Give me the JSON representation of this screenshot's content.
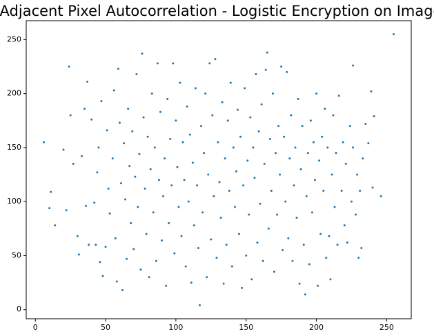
{
  "chart_data": {
    "type": "scatter",
    "title": "Adjacent Pixel Autocorrelation - Logistic Encryption on Image",
    "color": "#1f77b4",
    "x": [
      255,
      6,
      117,
      192,
      10,
      14,
      11,
      24,
      76,
      165,
      226,
      241,
      246,
      232,
      239,
      20,
      22,
      25,
      27,
      30,
      31,
      33,
      35,
      36,
      37,
      38,
      40,
      42,
      43,
      44,
      45,
      46,
      47,
      48,
      50,
      51,
      52,
      53,
      55,
      56,
      57,
      58,
      59,
      60,
      61,
      62,
      63,
      64,
      65,
      66,
      67,
      68,
      69,
      70,
      71,
      72,
      73,
      74,
      75,
      77,
      78,
      79,
      80,
      81,
      82,
      83,
      84,
      85,
      86,
      87,
      88,
      89,
      90,
      91,
      92,
      93,
      94,
      95,
      96,
      97,
      98,
      99,
      100,
      101,
      102,
      103,
      104,
      105,
      106,
      107,
      108,
      109,
      110,
      111,
      112,
      113,
      114,
      115,
      116,
      118,
      119,
      120,
      121,
      122,
      123,
      124,
      125,
      126,
      127,
      128,
      129,
      130,
      131,
      132,
      133,
      134,
      135,
      136,
      137,
      138,
      139,
      140,
      141,
      142,
      143,
      144,
      145,
      146,
      147,
      148,
      149,
      150,
      151,
      152,
      153,
      154,
      155,
      156,
      157,
      158,
      159,
      160,
      161,
      162,
      163,
      164,
      166,
      167,
      168,
      169,
      170,
      171,
      172,
      173,
      174,
      175,
      176,
      177,
      178,
      179,
      180,
      181,
      182,
      183,
      184,
      185,
      186,
      187,
      188,
      189,
      190,
      191,
      193,
      194,
      195,
      196,
      197,
      198,
      199,
      200,
      201,
      202,
      203,
      204,
      205,
      206,
      207,
      208,
      209,
      210,
      211,
      212,
      213,
      214,
      215,
      216,
      218,
      219,
      220,
      221,
      222,
      224,
      225,
      226,
      228,
      229,
      230,
      231,
      233,
      235,
      237,
      240
    ],
    "values": [
      255,
      155,
      4,
      14,
      94,
      78,
      109,
      225,
      237,
      238,
      226,
      179,
      105,
      57,
      202,
      148,
      92,
      180,
      135,
      68,
      51,
      142,
      186,
      96,
      211,
      60,
      176,
      99,
      60,
      127,
      150,
      44,
      193,
      31,
      58,
      166,
      112,
      89,
      140,
      203,
      66,
      26,
      223,
      173,
      117,
      18,
      154,
      102,
      47,
      186,
      133,
      80,
      165,
      56,
      123,
      218,
      95,
      144,
      37,
      178,
      112,
      70,
      160,
      30,
      130,
      200,
      90,
      150,
      45,
      228,
      120,
      183,
      64,
      105,
      140,
      22,
      195,
      80,
      158,
      115,
      228,
      52,
      175,
      132,
      95,
      210,
      68,
      155,
      120,
      40,
      188,
      100,
      162,
      25,
      136,
      78,
      205,
      115,
      57,
      170,
      90,
      145,
      200,
      30,
      125,
      228,
      65,
      180,
      105,
      232,
      48,
      155,
      118,
      85,
      192,
      24,
      140,
      60,
      175,
      110,
      210,
      40,
      150,
      95,
      128,
      185,
      70,
      160,
      20,
      115,
      205,
      50,
      138,
      88,
      178,
      28,
      150,
      122,
      218,
      62,
      165,
      98,
      190,
      45,
      135,
      222,
      75,
      158,
      110,
      200,
      35,
      145,
      88,
      170,
      125,
      225,
      55,
      160,
      100,
      220,
      66,
      140,
      180,
      45,
      115,
      150,
      85,
      195,
      24,
      130,
      170,
      60,
      105,
      145,
      42,
      175,
      90,
      155,
      120,
      200,
      22,
      138,
      70,
      160,
      110,
      186,
      48,
      150,
      68,
      28,
      125,
      180,
      95,
      145,
      60,
      198,
      110,
      155,
      78,
      135,
      62,
      170,
      100,
      150,
      88,
      125,
      48,
      110,
      140,
      172,
      154,
      113
    ],
    "xlim": [
      -6.5,
      267.5
    ],
    "ylim": [
      -8.5,
      267.5
    ],
    "xticks": [
      0,
      50,
      100,
      150,
      200,
      250
    ],
    "yticks": [
      0,
      50,
      100,
      150,
      200,
      250
    ],
    "grid": false
  }
}
